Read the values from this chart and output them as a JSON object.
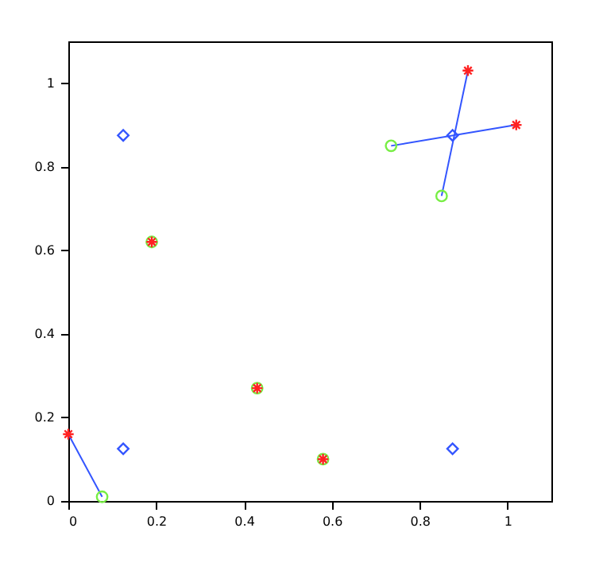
{
  "chart_data": {
    "type": "scatter",
    "xlim": [
      0,
      1.1
    ],
    "ylim": [
      0,
      1.1
    ],
    "xticks": [
      0,
      0.2,
      0.4,
      0.6,
      0.8,
      1
    ],
    "yticks": [
      0,
      0.2,
      0.4,
      0.6,
      0.8,
      1
    ],
    "legend": false,
    "grid": false,
    "series": [
      {
        "type": "line",
        "color": "#3355ff",
        "marker": "none",
        "x": [
          0,
          0.077
        ],
        "values": [
          0.16,
          0.01
        ]
      },
      {
        "type": "line",
        "color": "#3355ff",
        "marker": "none",
        "x": [
          0.735,
          1.02
        ],
        "values": [
          0.85,
          0.9
        ]
      },
      {
        "type": "line",
        "color": "#3355ff",
        "marker": "none",
        "x": [
          0.85,
          0.91
        ],
        "values": [
          0.73,
          1.03
        ]
      },
      {
        "type": "scatter",
        "color": "#3355ff",
        "marker": "diamond",
        "x": [
          0.125,
          0.125,
          0.875,
          0.875
        ],
        "values": [
          0.875,
          0.125,
          0.125,
          0.875
        ]
      },
      {
        "type": "scatter",
        "color": "#77ee44",
        "marker": "circle",
        "x": [
          0.077,
          0.19,
          0.43,
          0.58,
          0.735,
          0.85
        ],
        "values": [
          0.01,
          0.62,
          0.27,
          0.1,
          0.85,
          0.73
        ]
      },
      {
        "type": "scatter",
        "color": "#ff2222",
        "marker": "cross",
        "x": [
          0,
          0.19,
          0.43,
          0.58,
          0.91,
          1.02
        ],
        "values": [
          0.16,
          0.62,
          0.27,
          0.1,
          1.03,
          0.9
        ]
      }
    ]
  }
}
